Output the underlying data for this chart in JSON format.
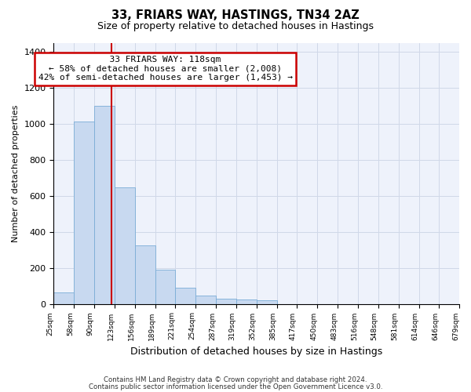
{
  "title1": "33, FRIARS WAY, HASTINGS, TN34 2AZ",
  "title2": "Size of property relative to detached houses in Hastings",
  "xlabel": "Distribution of detached houses by size in Hastings",
  "ylabel": "Number of detached properties",
  "annotation_title": "33 FRIARS WAY: 118sqm",
  "annotation_line1": "← 58% of detached houses are smaller (2,008)",
  "annotation_line2": "42% of semi-detached houses are larger (1,453) →",
  "property_size": 118,
  "footer1": "Contains HM Land Registry data © Crown copyright and database right 2024.",
  "footer2": "Contains public sector information licensed under the Open Government Licence v3.0.",
  "bar_color": "#c8d9f0",
  "bar_edge_color": "#7aacd6",
  "vline_color": "#cc0000",
  "annotation_box_edge": "#cc0000",
  "background_color": "#eef2fb",
  "grid_color": "#d0d8e8",
  "bin_edges": [
    25,
    58,
    90,
    123,
    156,
    189,
    221,
    254,
    287,
    319,
    352,
    385,
    417,
    450,
    483,
    516,
    548,
    581,
    614,
    646,
    679
  ],
  "bar_values": [
    65,
    1015,
    1100,
    648,
    325,
    188,
    90,
    48,
    28,
    25,
    18,
    0,
    0,
    0,
    0,
    0,
    0,
    0,
    0,
    0
  ],
  "ylim": [
    0,
    1450
  ],
  "yticks": [
    0,
    200,
    400,
    600,
    800,
    1000,
    1200,
    1400
  ]
}
